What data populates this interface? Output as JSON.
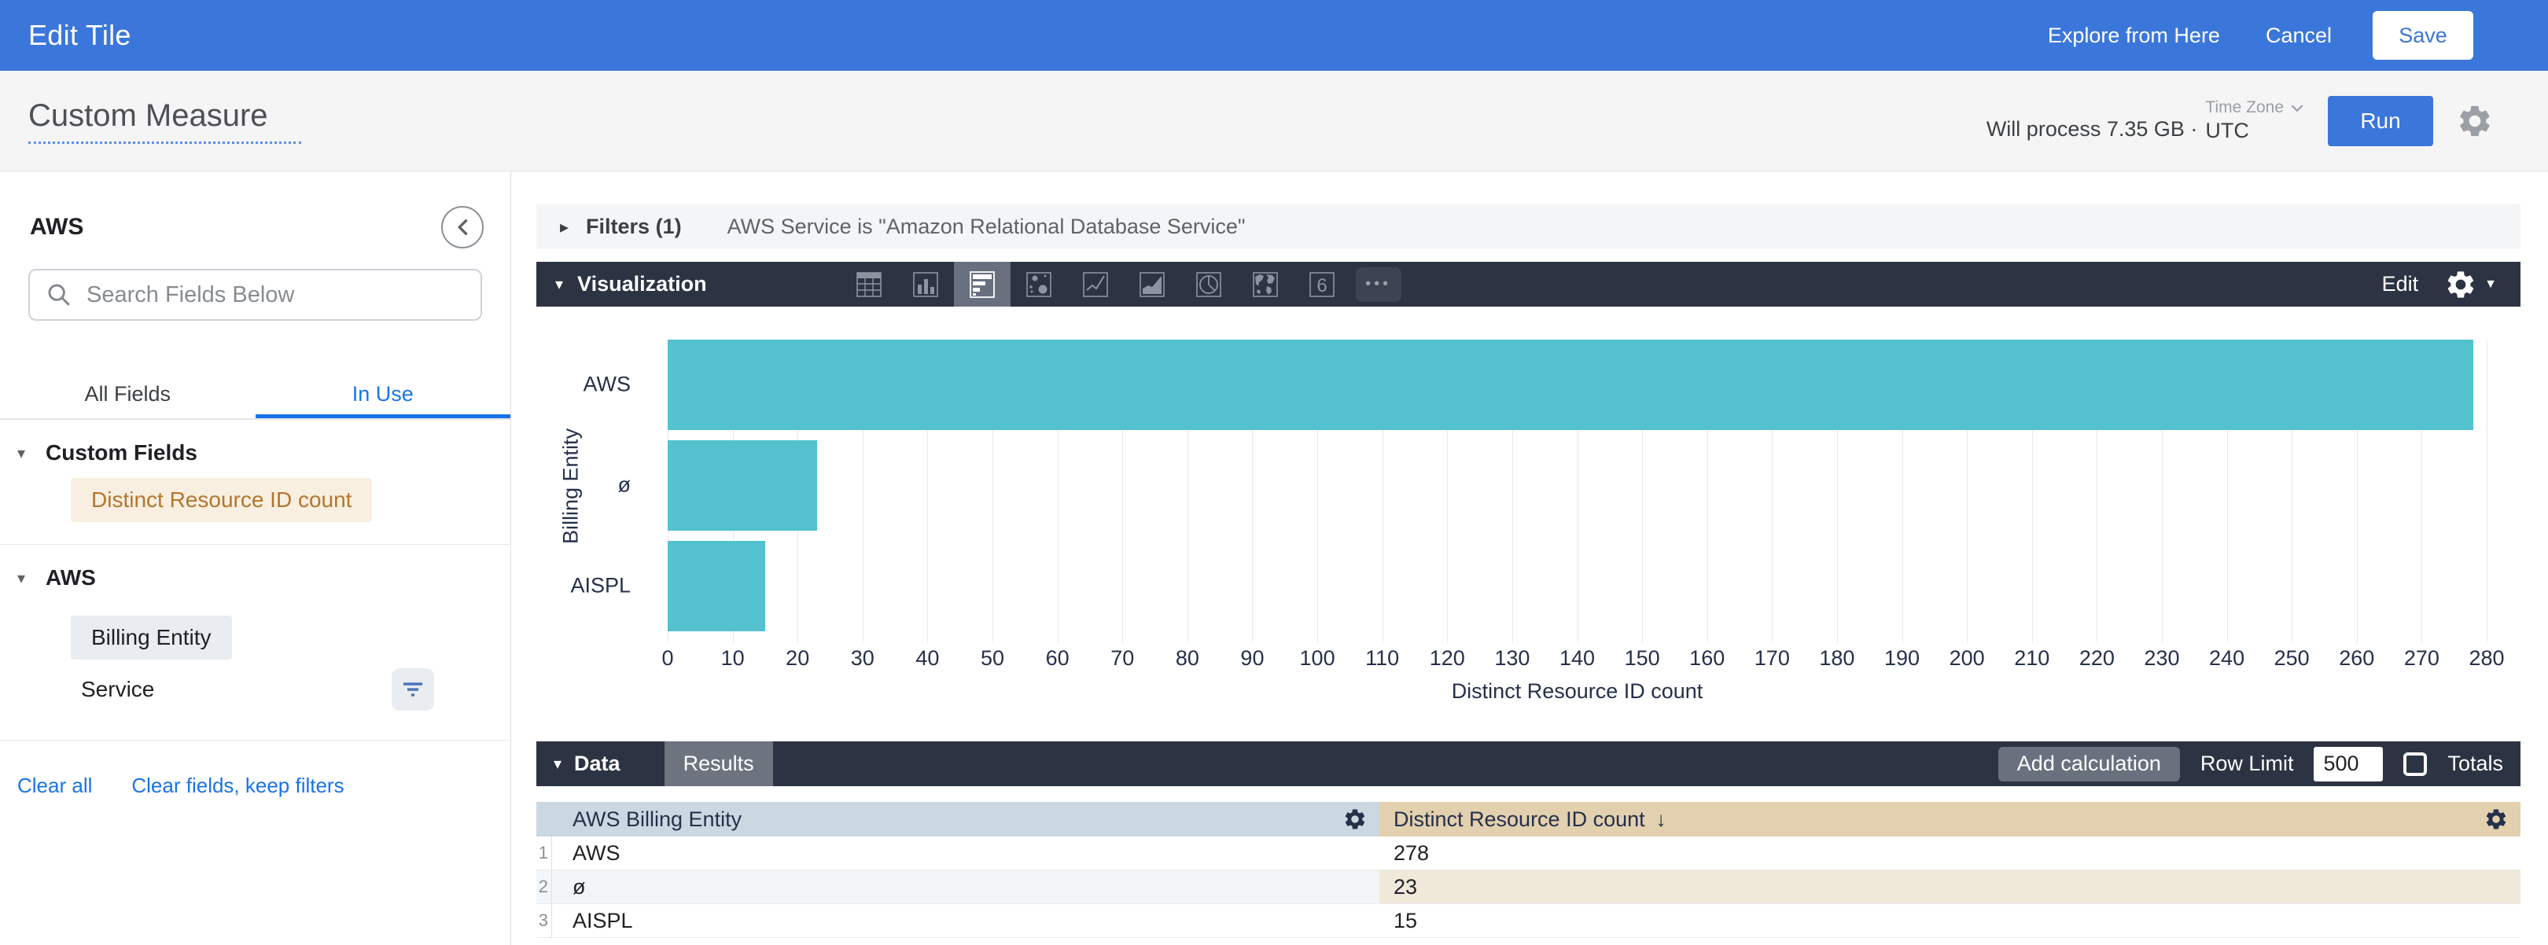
{
  "topbar": {
    "title": "Edit Tile",
    "explore_label": "Explore from Here",
    "cancel_label": "Cancel",
    "save_label": "Save"
  },
  "subheader": {
    "title": "Custom Measure",
    "process_text": "Will process 7.35 GB ·",
    "timezone_label": "Time Zone",
    "timezone_value": "UTC",
    "run_label": "Run"
  },
  "sidebar": {
    "view_name": "AWS",
    "search_placeholder": "Search Fields Below",
    "tabs": [
      {
        "label": "All Fields"
      },
      {
        "label": "In Use"
      }
    ],
    "sections": [
      {
        "title": "Custom Fields"
      },
      {
        "title": "AWS"
      }
    ],
    "fields": {
      "custom_measure": "Distinct Resource ID count",
      "dimension_selected": "Billing Entity",
      "dimension_filtered": "Service"
    },
    "links": {
      "clear_all": "Clear all",
      "clear_fields": "Clear fields, keep filters"
    }
  },
  "filters": {
    "label": "Filters (1)",
    "summary": "AWS Service is \"Amazon Relational Database Service\""
  },
  "visualization": {
    "label": "Visualization",
    "edit_label": "Edit",
    "icons": [
      "table",
      "column-chart",
      "bar-chart",
      "scatter-plot",
      "line-chart",
      "area-chart",
      "pie-chart",
      "map",
      "single-value",
      "more-options"
    ],
    "selected_index": 2
  },
  "chart_data": {
    "type": "bar",
    "orientation": "horizontal",
    "categories": [
      "AWS",
      "ø",
      "AISPL"
    ],
    "values": [
      278,
      23,
      15
    ],
    "title": "",
    "xlabel": "Distinct Resource ID count",
    "ylabel": "Billing Entity",
    "xlim": [
      0,
      280
    ],
    "xticks": [
      0,
      10,
      20,
      30,
      40,
      50,
      60,
      70,
      80,
      90,
      100,
      110,
      120,
      130,
      140,
      150,
      160,
      170,
      180,
      190,
      200,
      210,
      220,
      230,
      240,
      250,
      260,
      270,
      280
    ],
    "grid": true,
    "legend": false,
    "bar_color": "#53c1ce"
  },
  "data_section": {
    "label": "Data",
    "results_tab": "Results",
    "add_calculation": "Add calculation",
    "row_limit_label": "Row Limit",
    "row_limit_value": "500",
    "totals_label": "Totals"
  },
  "table": {
    "columns": [
      {
        "label": "AWS Billing Entity"
      },
      {
        "label": "Distinct Resource ID count",
        "sort_indicator": "↓"
      }
    ],
    "rows": [
      {
        "n": "1",
        "dimension": "AWS",
        "measure": "278"
      },
      {
        "n": "2",
        "dimension": "ø",
        "measure": "23"
      },
      {
        "n": "3",
        "dimension": "AISPL",
        "measure": "15"
      }
    ]
  },
  "colors": {
    "header_blue": "#3b76da",
    "dark_bar": "#2c3342",
    "bar_teal": "#53c1ce",
    "dimension_header_bg": "#ccd8e1",
    "measure_header_bg": "#e2d0af",
    "measure_chip_bg": "#f9efe0",
    "measure_chip_text": "#b3762e",
    "link_blue": "#1a73e8"
  }
}
